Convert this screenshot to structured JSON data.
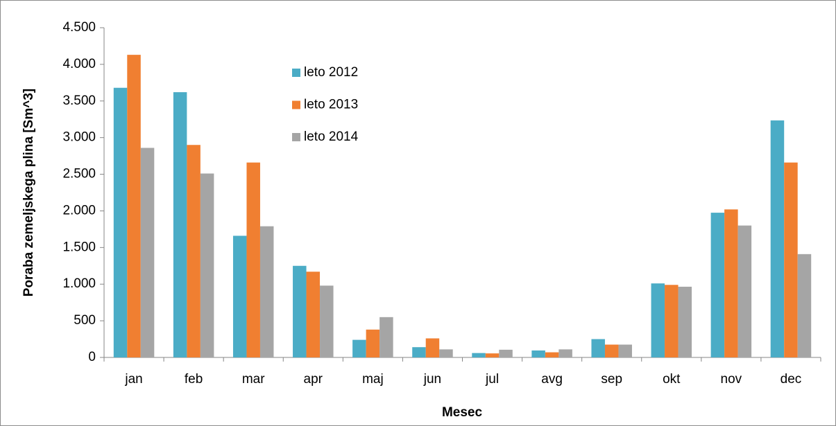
{
  "chart_data": {
    "type": "bar",
    "x_label": "Mesec",
    "y_label": "Poraba zemeljskega plina [Sm^3]",
    "categories": [
      "jan",
      "feb",
      "mar",
      "apr",
      "maj",
      "jun",
      "jul",
      "avg",
      "sep",
      "okt",
      "nov",
      "dec"
    ],
    "series": [
      {
        "name": "leto 2012",
        "color": "#4bacc6",
        "values": [
          3680,
          3620,
          1660,
          1250,
          240,
          140,
          60,
          95,
          250,
          1010,
          1975,
          3235
        ]
      },
      {
        "name": "leto 2013",
        "color": "#f07f31",
        "values": [
          4130,
          2900,
          2660,
          1170,
          380,
          260,
          55,
          70,
          175,
          990,
          2020,
          2660
        ]
      },
      {
        "name": "leto 2014",
        "color": "#a5a5a5",
        "values": [
          2860,
          2510,
          1790,
          980,
          550,
          110,
          105,
          110,
          175,
          965,
          1800,
          1410
        ]
      }
    ],
    "ylim": [
      0,
      4500
    ],
    "yticks": [
      0,
      500,
      {
        "value": 1000,
        "label": "1.000"
      },
      {
        "value": 1500,
        "label": "1.500"
      },
      {
        "value": 2000,
        "label": "2.000"
      },
      {
        "value": 2500,
        "label": "2.500"
      },
      {
        "value": 3000,
        "label": "3.000"
      },
      {
        "value": 3500,
        "label": "3.500"
      },
      {
        "value": 4000,
        "label": "4.000"
      },
      {
        "value": 4500,
        "label": "4.500"
      }
    ],
    "grid": false,
    "legend": "upper-left"
  }
}
